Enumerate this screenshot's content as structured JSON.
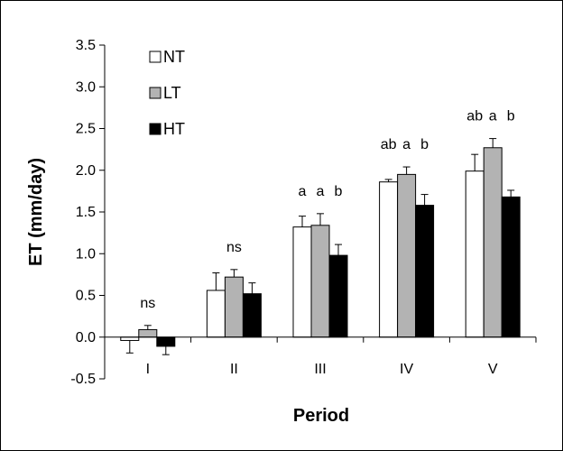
{
  "chart_data": {
    "type": "bar",
    "title": "",
    "xlabel": "Period",
    "ylabel": "ET (mm/day)",
    "ylim": [
      -0.5,
      3.5
    ],
    "yticks": [
      "-0.5",
      "0.0",
      "0.5",
      "1.0",
      "1.5",
      "2.0",
      "2.5",
      "3.0",
      "3.5"
    ],
    "categories": [
      "I",
      "II",
      "III",
      "IV",
      "V"
    ],
    "grid": false,
    "legend_position": "top-left",
    "series": [
      {
        "name": "NT",
        "color": "#ffffff",
        "values": [
          -0.04,
          0.56,
          1.32,
          1.86,
          1.99
        ],
        "errors": [
          0.15,
          0.21,
          0.13,
          0.03,
          0.2
        ]
      },
      {
        "name": "LT",
        "color": "#b3b3b3",
        "values": [
          0.09,
          0.72,
          1.34,
          1.95,
          2.27
        ],
        "errors": [
          0.05,
          0.09,
          0.14,
          0.09,
          0.11
        ]
      },
      {
        "name": "HT",
        "color": "#000000",
        "values": [
          -0.11,
          0.52,
          0.98,
          1.58,
          1.68
        ],
        "errors": [
          0.1,
          0.13,
          0.13,
          0.13,
          0.08
        ]
      }
    ],
    "annotations": [
      {
        "category": "I",
        "labels": [
          "ns"
        ]
      },
      {
        "category": "II",
        "labels": [
          "ns"
        ]
      },
      {
        "category": "III",
        "labels": [
          "a",
          "a",
          "b"
        ]
      },
      {
        "category": "IV",
        "labels": [
          "ab",
          "a",
          "b"
        ]
      },
      {
        "category": "V",
        "labels": [
          "ab",
          "a",
          "b"
        ]
      }
    ]
  }
}
